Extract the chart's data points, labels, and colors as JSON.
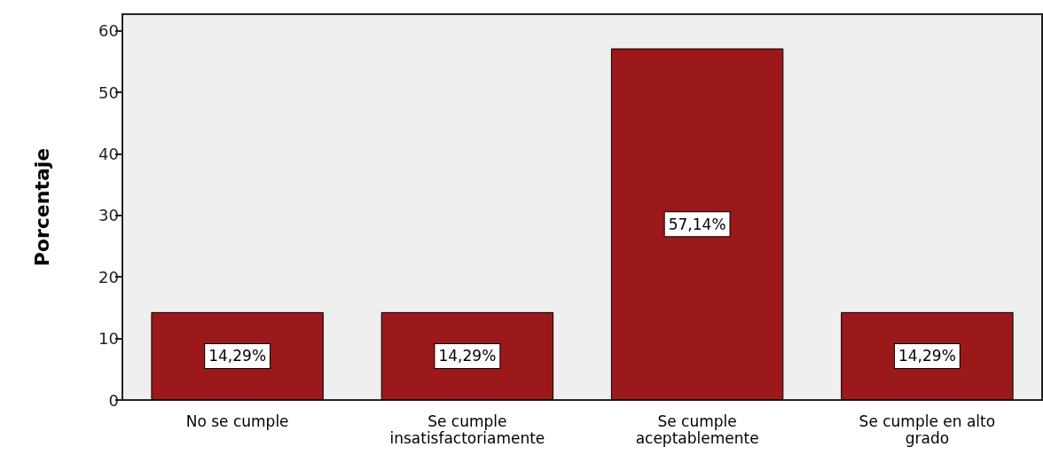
{
  "chart_data": {
    "type": "bar",
    "ylabel": "Porcentaje",
    "categories": [
      "No se cumple",
      "Se cumple\ninsatisfactoriamente",
      "Se cumple\naceptablemente",
      "Se cumple en alto\ngrado"
    ],
    "values": [
      14.29,
      14.29,
      57.14,
      14.29
    ],
    "value_labels": [
      "14,29%",
      "14,29%",
      "57,14%",
      "14,29%"
    ],
    "color": "#9b181b",
    "ylim": [
      0,
      62.7
    ],
    "yticks": [
      0,
      10,
      20,
      30,
      40,
      50,
      60
    ],
    "grid": false
  }
}
